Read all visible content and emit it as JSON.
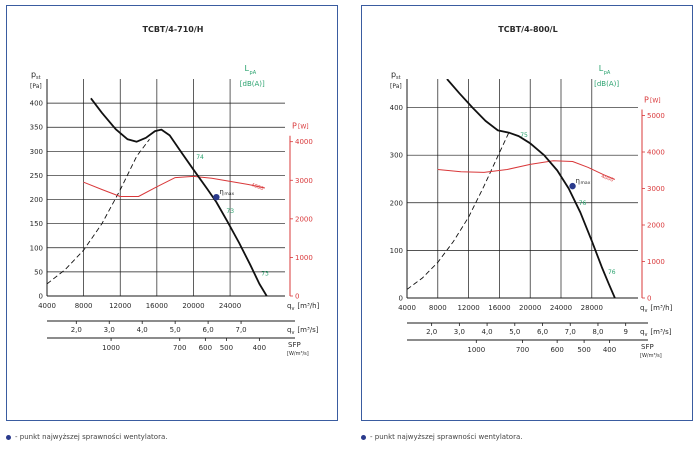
{
  "note_text": "- punkt najwyższej sprawności wentylatora.",
  "colors": {
    "border": "#3a5ca0",
    "pressure_curve": "#111111",
    "power_curve": "#d9383a",
    "power_axis": "#d9383a",
    "lpa_label": "#2aa26e",
    "eta_point": "#2a3a8c"
  },
  "chart_data": [
    {
      "type": "line",
      "title": "TCBT/4-710/H",
      "ylabel": "p",
      "ylabel_sub": "st",
      "ylabel_unit": "[Pa]",
      "ylim": [
        0,
        450
      ],
      "yticks": [
        0,
        50,
        100,
        150,
        200,
        250,
        300,
        350,
        400
      ],
      "y2label": "P",
      "y2label_unit": "[W]",
      "y2lim": [
        0,
        5625
      ],
      "y2ticks": [
        0,
        1000,
        2000,
        3000,
        4000
      ],
      "lpa_label": "L",
      "lpa_sub": "pA",
      "lpa_unit": "[dB(A)]",
      "xlim": [
        4000,
        30000
      ],
      "xticks": [
        4000,
        8000,
        12000,
        16000,
        20000,
        24000
      ],
      "xunit_label": "q",
      "xunit_sub": "v",
      "xunit": "[m³/h]",
      "x2ticks": [
        {
          "label": "2,0",
          "at": 7200
        },
        {
          "label": "3,0",
          "at": 10800
        },
        {
          "label": "4,0",
          "at": 14400
        },
        {
          "label": "5,0",
          "at": 18000
        },
        {
          "label": "6,0",
          "at": 21600
        },
        {
          "label": "7,0",
          "at": 25200
        }
      ],
      "x2unit": "[m³/s]",
      "sfp_ticks": [
        {
          "label": "1000",
          "at": 11000
        },
        {
          "label": "700",
          "at": 18500
        },
        {
          "label": "600",
          "at": 21300
        },
        {
          "label": "500",
          "at": 23600
        },
        {
          "label": "400",
          "at": 27200
        }
      ],
      "sfp_label": "SFP",
      "sfp_unit": "[W/m³/s]",
      "pressure_curve": {
        "x": [
          8800,
          10000,
          11500,
          12800,
          13800,
          14800,
          15800,
          16500,
          17400,
          18600,
          20000,
          21500,
          22500,
          23700,
          25000,
          26200,
          27200,
          28000
        ],
        "y": [
          410,
          380,
          346,
          325,
          320,
          328,
          342,
          345,
          333,
          300,
          262,
          222,
          195,
          155,
          110,
          65,
          25,
          0
        ]
      },
      "system_curve": {
        "x": [
          4000,
          6000,
          8000,
          10000,
          12000,
          13800,
          15200
        ],
        "y": [
          25,
          55,
          95,
          150,
          220,
          290,
          325
        ]
      },
      "power_curve": {
        "x": [
          8000,
          10000,
          12000,
          14000,
          16000,
          18000,
          20000,
          22000,
          24000,
          26000,
          27800
        ],
        "y": [
          2950,
          2760,
          2580,
          2580,
          2830,
          3070,
          3100,
          3050,
          2970,
          2890,
          2800
        ]
      },
      "power_label": "4000",
      "eta_point": {
        "x": 22500,
        "y": 205,
        "label": "η",
        "label_sub": "max"
      },
      "lpa_marks": [
        {
          "label": "74",
          "x": 20300,
          "y": 284
        },
        {
          "label": "73",
          "x": 23600,
          "y": 172
        },
        {
          "label": "73",
          "x": 27400,
          "y": 42
        }
      ]
    },
    {
      "type": "line",
      "title": "TCBT/4-800/L",
      "ylabel": "p",
      "ylabel_sub": "st",
      "ylabel_unit": "[Pa]",
      "ylim": [
        0,
        460
      ],
      "yticks": [
        0,
        100,
        200,
        300,
        400
      ],
      "y2label": "P",
      "y2label_unit": "[W]",
      "y2lim": [
        0,
        6000
      ],
      "y2ticks": [
        0,
        1000,
        2000,
        3000,
        4000,
        5000
      ],
      "lpa_label": "L",
      "lpa_sub": "pA",
      "lpa_unit": "[dB(A)]",
      "xlim": [
        4000,
        34000
      ],
      "xticks": [
        4000,
        8000,
        12000,
        16000,
        20000,
        24000,
        28000
      ],
      "xunit_label": "q",
      "xunit_sub": "v",
      "xunit": "[m³/h]",
      "x2ticks": [
        {
          "label": "2,0",
          "at": 7200
        },
        {
          "label": "3,0",
          "at": 10800
        },
        {
          "label": "4,0",
          "at": 14400
        },
        {
          "label": "5,0",
          "at": 18000
        },
        {
          "label": "6,0",
          "at": 21600
        },
        {
          "label": "7,0",
          "at": 25200
        },
        {
          "label": "8,0",
          "at": 28800
        },
        {
          "label": "9",
          "at": 32400
        }
      ],
      "x2unit": "[m³/s]",
      "sfp_ticks": [
        {
          "label": "1000",
          "at": 13000
        },
        {
          "label": "700",
          "at": 19000
        },
        {
          "label": "600",
          "at": 23500
        },
        {
          "label": "500",
          "at": 27000
        },
        {
          "label": "400",
          "at": 30300
        }
      ],
      "sfp_label": "SFP",
      "sfp_unit": "[W/m³/s]",
      "pressure_curve": {
        "x": [
          9200,
          10800,
          12500,
          14200,
          15800,
          17300,
          18500,
          20000,
          21800,
          23500,
          25000,
          26500,
          28000,
          29300,
          30200,
          31000
        ],
        "y": [
          460,
          430,
          400,
          372,
          352,
          347,
          340,
          325,
          300,
          268,
          230,
          180,
          120,
          65,
          30,
          0
        ]
      },
      "system_curve": {
        "x": [
          4000,
          6000,
          8000,
          10000,
          12000,
          14000,
          16000,
          17300
        ],
        "y": [
          18,
          42,
          75,
          118,
          170,
          235,
          305,
          350
        ]
      },
      "power_curve": {
        "x": [
          8000,
          11000,
          14000,
          17000,
          20000,
          23000,
          25500,
          27500,
          29500,
          31000
        ],
        "y": [
          3520,
          3460,
          3440,
          3520,
          3660,
          3760,
          3740,
          3580,
          3380,
          3250
        ]
      },
      "power_label": "4000",
      "eta_point": {
        "x": 25500,
        "y": 235,
        "label": "η",
        "label_sub": "max"
      },
      "lpa_marks": [
        {
          "label": "75",
          "x": 18700,
          "y": 338
        },
        {
          "label": "76",
          "x": 26300,
          "y": 195
        },
        {
          "label": "76",
          "x": 30100,
          "y": 50
        }
      ]
    }
  ]
}
